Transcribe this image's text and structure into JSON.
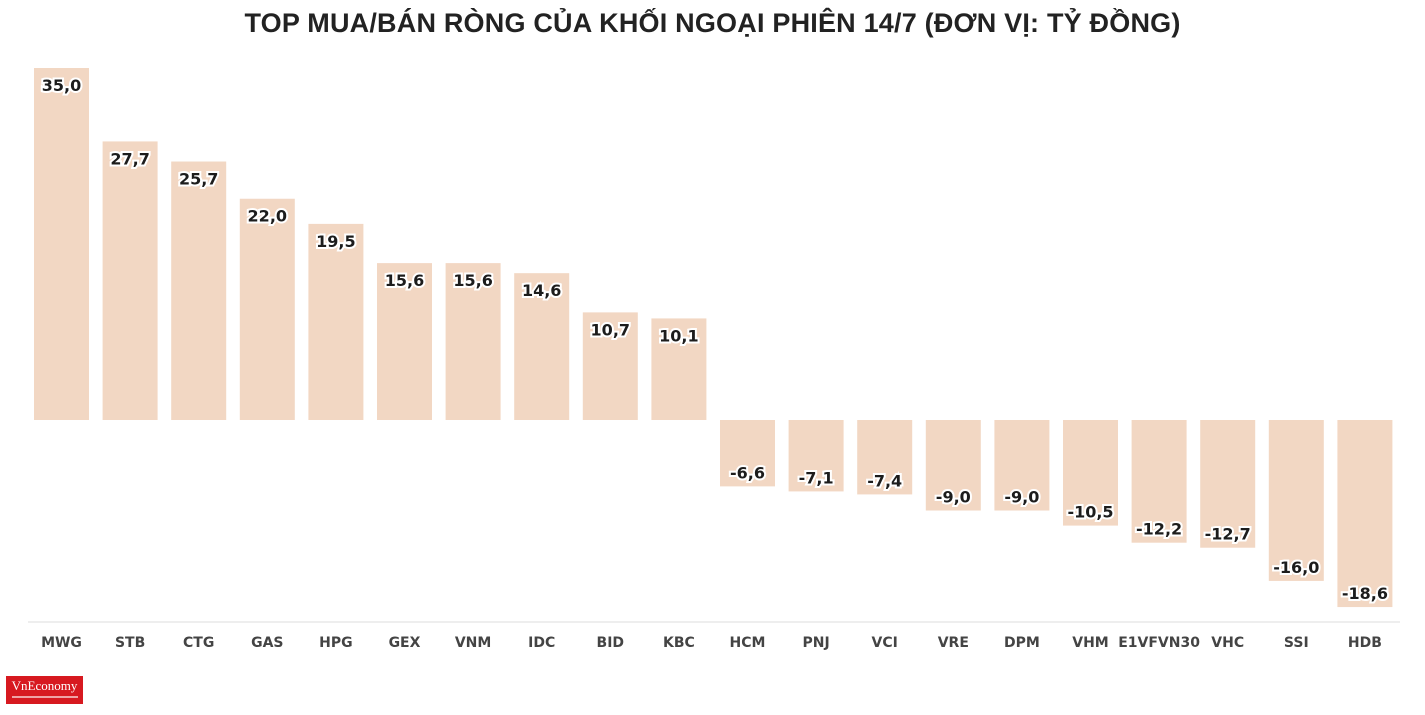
{
  "title": "TOP MUA/BÁN RÒNG CỦA KHỐI NGOẠI PHIÊN 14/7 (ĐƠN VỊ: TỶ ĐỒNG)",
  "brand": {
    "logo_text": "VnEconomy",
    "color": "#d71920"
  },
  "colors": {
    "bar": "#f2d7c3",
    "label_text": "#1c1c1c",
    "tick_text": "#444444",
    "axis": "#dddddd"
  },
  "chart_data": {
    "type": "bar",
    "title": "TOP MUA/BÁN RÒNG CỦA KHỐI NGOẠI PHIÊN 14/7 (ĐƠN VỊ: TỶ ĐỒNG)",
    "xlabel": "",
    "ylabel": "",
    "categories": [
      "MWG",
      "STB",
      "CTG",
      "GAS",
      "HPG",
      "GEX",
      "VNM",
      "IDC",
      "BID",
      "KBC",
      "HCM",
      "PNJ",
      "VCI",
      "VRE",
      "DPM",
      "VHM",
      "E1VFVN30",
      "VHC",
      "SSI",
      "HDB"
    ],
    "values": [
      35.0,
      27.7,
      25.7,
      22.0,
      19.5,
      15.6,
      15.6,
      14.6,
      10.7,
      10.1,
      -6.6,
      -7.1,
      -7.4,
      -9.0,
      -9.0,
      -10.5,
      -12.2,
      -12.7,
      -16.0,
      -18.6
    ],
    "value_labels": [
      "35,0",
      "27,7",
      "25,7",
      "22,0",
      "19,5",
      "15,6",
      "15,6",
      "14,6",
      "10,7",
      "10,1",
      "-6,6",
      "-7,1",
      "-7,4",
      "-9,0",
      "-9,0",
      "-10,5",
      "-12,2",
      "-12,7",
      "-16,0",
      "-18,6"
    ],
    "ylim": [
      -20,
      35
    ],
    "grid": false,
    "legend": "none"
  }
}
